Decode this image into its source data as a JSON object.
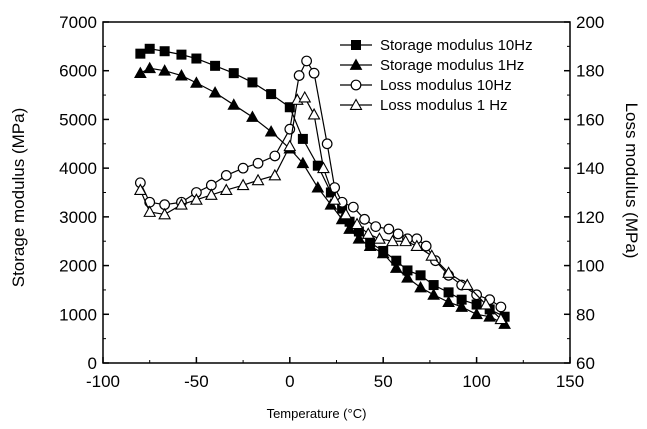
{
  "chart_data": {
    "type": "line",
    "xlabel": "Temperature (°C)",
    "ylabel": "Storage modulus (MPa)",
    "y2label": "Loss modulus (MPa)",
    "xlim": [
      -100,
      150
    ],
    "ylim": [
      0,
      7000
    ],
    "y2lim": [
      60,
      200
    ],
    "xticks": [
      -100,
      -50,
      0,
      50,
      100,
      150
    ],
    "yticks": [
      0,
      1000,
      2000,
      3000,
      4000,
      5000,
      6000,
      7000
    ],
    "y2ticks": [
      60,
      80,
      100,
      120,
      140,
      160,
      180,
      200
    ],
    "grid": false,
    "legend_position": "top-right",
    "series": [
      {
        "name": "Storage modulus 10Hz",
        "axis": "left",
        "marker": "square-filled",
        "x": [
          -80,
          -75,
          -67,
          -58,
          -50,
          -40,
          -30,
          -20,
          -10,
          0,
          7,
          15,
          22,
          28,
          32,
          37,
          43,
          50,
          57,
          63,
          70,
          77,
          85,
          92,
          100,
          107,
          115
        ],
        "y": [
          6350,
          6450,
          6400,
          6330,
          6250,
          6100,
          5950,
          5760,
          5520,
          5250,
          4600,
          4050,
          3500,
          3170,
          2900,
          2700,
          2470,
          2300,
          2100,
          1900,
          1800,
          1600,
          1450,
          1300,
          1200,
          1100,
          950
        ]
      },
      {
        "name": "Storage modulus 1Hz",
        "axis": "left",
        "marker": "triangle-filled",
        "x": [
          -80,
          -75,
          -67,
          -58,
          -50,
          -40,
          -30,
          -20,
          -10,
          0,
          7,
          15,
          22,
          28,
          32,
          37,
          43,
          50,
          57,
          63,
          70,
          77,
          85,
          92,
          100,
          107,
          115
        ],
        "y": [
          5950,
          6050,
          6000,
          5900,
          5750,
          5550,
          5300,
          5050,
          4750,
          4400,
          4100,
          3600,
          3250,
          2950,
          2750,
          2550,
          2400,
          2250,
          1950,
          1750,
          1550,
          1400,
          1250,
          1150,
          1000,
          950,
          800
        ]
      },
      {
        "name": "Loss modulus 10Hz",
        "axis": "right",
        "marker": "circle-open",
        "x": [
          -80,
          -75,
          -67,
          -58,
          -50,
          -42,
          -34,
          -25,
          -17,
          -8,
          0,
          5,
          9,
          13,
          20,
          24,
          28,
          34,
          40,
          46,
          53,
          58,
          63,
          68,
          73,
          78,
          85,
          92,
          100,
          107,
          113
        ],
        "y": [
          134,
          126,
          125,
          126,
          130,
          133,
          137,
          140,
          142,
          145,
          156,
          178,
          184,
          179,
          150,
          132,
          126,
          124,
          119,
          116,
          115,
          113,
          111,
          111,
          108,
          102,
          96,
          92,
          88,
          86,
          83
        ]
      },
      {
        "name": "Loss modulus 1 Hz",
        "axis": "right",
        "marker": "triangle-open",
        "x": [
          -80,
          -75,
          -67,
          -58,
          -50,
          -42,
          -34,
          -25,
          -17,
          -8,
          0,
          4,
          8,
          13,
          18,
          24,
          30,
          36,
          42,
          48,
          55,
          62,
          68,
          76,
          85,
          95,
          105,
          113
        ],
        "y": [
          131,
          122,
          121,
          125,
          127,
          129,
          131,
          133,
          135,
          137,
          149,
          168,
          169,
          162,
          140,
          127,
          121,
          117,
          113,
          111,
          110,
          110,
          108,
          104,
          97,
          92,
          84,
          78
        ]
      }
    ]
  }
}
